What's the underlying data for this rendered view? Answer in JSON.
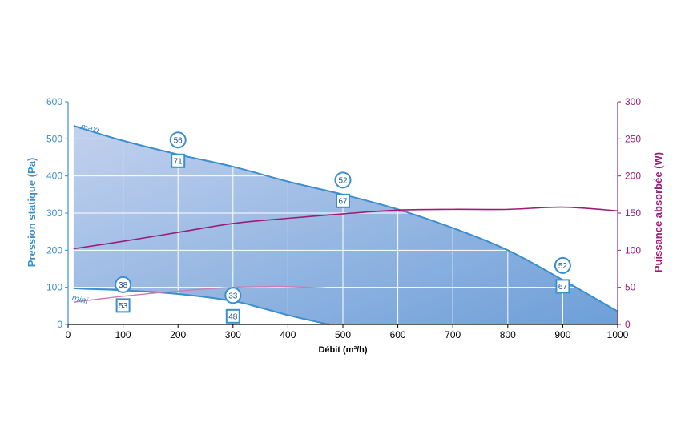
{
  "chart_data": {
    "type": "line",
    "xlabel": "Débit (m³/h)",
    "ylabel": "Pression statique (Pa)",
    "y2label": "Puissance absorbée (W)",
    "xlim": [
      0,
      1000
    ],
    "ylim": [
      0,
      600
    ],
    "y2lim": [
      0,
      300
    ],
    "x_ticks": [
      "0",
      "100",
      "200",
      "300",
      "400",
      "500",
      "600",
      "700",
      "800",
      "900",
      "1000"
    ],
    "y_ticks": [
      "0",
      "100",
      "200",
      "300",
      "400",
      "500",
      "600"
    ],
    "y2_ticks": [
      "0",
      "50",
      "100",
      "150",
      "200",
      "250",
      "300"
    ],
    "grid": true,
    "colors": {
      "pressure": "#3a8fcc",
      "power": "#9b1d78",
      "power_mini": "#d27aae",
      "fill_light": "#c2d1ee",
      "fill_dark": "#6d9fd8",
      "grid": "#ffffff",
      "axis_text": "#000000"
    },
    "series": [
      {
        "name": "maxi",
        "axis": "left",
        "x": [
          10,
          100,
          200,
          300,
          400,
          500,
          600,
          700,
          800,
          900,
          1000
        ],
        "y": [
          535,
          495,
          458,
          425,
          385,
          350,
          310,
          260,
          200,
          120,
          35
        ]
      },
      {
        "name": "mini",
        "axis": "left",
        "x": [
          10,
          100,
          200,
          300,
          350,
          400,
          450,
          475
        ],
        "y": [
          97,
          92,
          82,
          63,
          45,
          25,
          8,
          0
        ]
      },
      {
        "name": "",
        "axis": "right",
        "x": [
          10,
          100,
          200,
          300,
          400,
          500,
          600,
          700,
          800,
          900,
          1000
        ],
        "y": [
          102,
          112,
          124,
          136,
          143,
          149,
          154,
          155,
          155,
          158,
          153
        ]
      },
      {
        "name": "",
        "axis": "right",
        "x": [
          10,
          100,
          200,
          300,
          360,
          400,
          470
        ],
        "y": [
          30,
          38,
          45,
          50,
          51,
          51,
          49
        ]
      }
    ],
    "annotations": [
      {
        "x": 200,
        "circle": "56",
        "square": "71"
      },
      {
        "x": 500,
        "circle": "52",
        "square": "67"
      },
      {
        "x": 900,
        "circle": "52",
        "square": "67"
      },
      {
        "x": 100,
        "circle": "38",
        "square": "53"
      },
      {
        "x": 300,
        "circle": "33",
        "square": "48"
      }
    ]
  }
}
